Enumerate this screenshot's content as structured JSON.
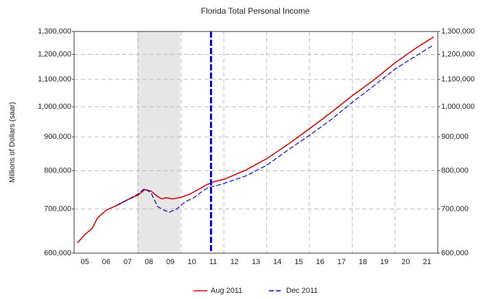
{
  "chart_data": {
    "type": "line",
    "title": "Florida Total Personal Income",
    "ylabel": "Millions of Dollars (saar)",
    "log_y": true,
    "grid": true,
    "xlim": [
      2005,
      2022
    ],
    "xticks": [
      {
        "value": 2005.5,
        "label": "05"
      },
      {
        "value": 2006.5,
        "label": "06"
      },
      {
        "value": 2007.5,
        "label": "07"
      },
      {
        "value": 2008.5,
        "label": "08"
      },
      {
        "value": 2009.5,
        "label": "09"
      },
      {
        "value": 2010.5,
        "label": "10"
      },
      {
        "value": 2011.5,
        "label": "11"
      },
      {
        "value": 2012.5,
        "label": "12"
      },
      {
        "value": 2013.5,
        "label": "13"
      },
      {
        "value": 2014.5,
        "label": "14"
      },
      {
        "value": 2015.5,
        "label": "15"
      },
      {
        "value": 2016.5,
        "label": "16"
      },
      {
        "value": 2017.5,
        "label": "17"
      },
      {
        "value": 2018.5,
        "label": "18"
      },
      {
        "value": 2019.5,
        "label": "19"
      },
      {
        "value": 2020.5,
        "label": "20"
      },
      {
        "value": 2021.5,
        "label": "21"
      }
    ],
    "x_gridlines": [
      2008,
      2010,
      2012,
      2014,
      2016,
      2018,
      2020
    ],
    "ylim": [
      600000,
      1300000
    ],
    "yticks": [
      {
        "value": 600000,
        "label": "600,000"
      },
      {
        "value": 700000,
        "label": "700,000"
      },
      {
        "value": 800000,
        "label": "800,000"
      },
      {
        "value": 900000,
        "label": "900,000"
      },
      {
        "value": 1000000,
        "label": "1,000,000"
      },
      {
        "value": 1100000,
        "label": "1,100,000"
      },
      {
        "value": 1200000,
        "label": "1,200,000"
      },
      {
        "value": 1300000,
        "label": "1,300,000"
      }
    ],
    "shaded_region": [
      2007.95,
      2009.95
    ],
    "vertical_line": 2011.4,
    "series": [
      {
        "name": "Aug 2011",
        "color": "#e00000",
        "style": "solid",
        "x": [
          2005.15,
          2005.5,
          2005.85,
          2006.1,
          2006.5,
          2007.0,
          2007.5,
          2008.0,
          2008.3,
          2008.6,
          2008.9,
          2009.1,
          2009.3,
          2009.6,
          2010.0,
          2010.4,
          2010.8,
          2011.2,
          2011.6,
          2012.0,
          2013.0,
          2014.0,
          2015.0,
          2016.0,
          2017.0,
          2018.0,
          2019.0,
          2020.0,
          2021.0,
          2021.8
        ],
        "values": [
          622000,
          640000,
          655000,
          679000,
          697000,
          709000,
          723000,
          735000,
          749000,
          745000,
          731000,
          725000,
          728000,
          725000,
          729000,
          737000,
          749000,
          762000,
          771000,
          776000,
          801000,
          834000,
          877000,
          926000,
          979000,
          1039000,
          1097000,
          1165000,
          1228000,
          1275000
        ]
      },
      {
        "name": "Dec 2011",
        "color": "#0000dd",
        "style": "dashed",
        "x": [
          2007.0,
          2007.5,
          2008.0,
          2008.3,
          2008.6,
          2008.9,
          2009.2,
          2009.45,
          2009.8,
          2010.2,
          2010.6,
          2011.0,
          2011.3,
          2011.7,
          2012.0,
          2013.0,
          2014.0,
          2015.0,
          2016.0,
          2017.0,
          2018.0,
          2019.0,
          2020.0,
          2021.0,
          2021.8
        ],
        "values": [
          709000,
          723000,
          738000,
          752000,
          740000,
          706000,
          697000,
          692000,
          700000,
          718000,
          728000,
          745000,
          755000,
          760000,
          765000,
          785000,
          815000,
          860000,
          905000,
          955000,
          1015000,
          1075000,
          1140000,
          1195000,
          1240000
        ]
      }
    ]
  }
}
